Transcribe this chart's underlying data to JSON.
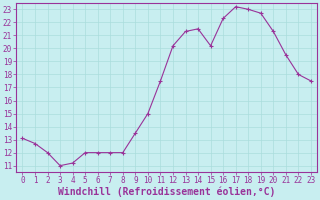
{
  "x": [
    0,
    1,
    2,
    3,
    4,
    5,
    6,
    7,
    8,
    9,
    10,
    11,
    12,
    13,
    14,
    15,
    16,
    17,
    18,
    19,
    20,
    21,
    22,
    23
  ],
  "y": [
    13.1,
    12.7,
    12.0,
    11.0,
    11.2,
    12.0,
    12.0,
    12.0,
    12.0,
    13.5,
    15.0,
    17.5,
    20.2,
    21.3,
    21.5,
    20.2,
    22.3,
    23.2,
    23.0,
    22.7,
    21.3,
    19.5,
    18.0,
    17.5
  ],
  "line_color": "#993399",
  "marker": "+",
  "marker_size": 3,
  "marker_linewidth": 0.8,
  "line_width": 0.8,
  "bg_color": "#c8eef0",
  "grid_color": "#aadddd",
  "xlabel": "Windchill (Refroidissement éolien,°C)",
  "xlim": [
    -0.5,
    23.5
  ],
  "ylim": [
    10.5,
    23.5
  ],
  "yticks": [
    11,
    12,
    13,
    14,
    15,
    16,
    17,
    18,
    19,
    20,
    21,
    22,
    23
  ],
  "xticks": [
    0,
    1,
    2,
    3,
    4,
    5,
    6,
    7,
    8,
    9,
    10,
    11,
    12,
    13,
    14,
    15,
    16,
    17,
    18,
    19,
    20,
    21,
    22,
    23
  ],
  "tick_labelsize": 5.5,
  "xlabel_fontsize": 7,
  "axis_color": "#993399",
  "spine_color": "#993399",
  "figsize": [
    3.2,
    2.0
  ],
  "dpi": 100
}
